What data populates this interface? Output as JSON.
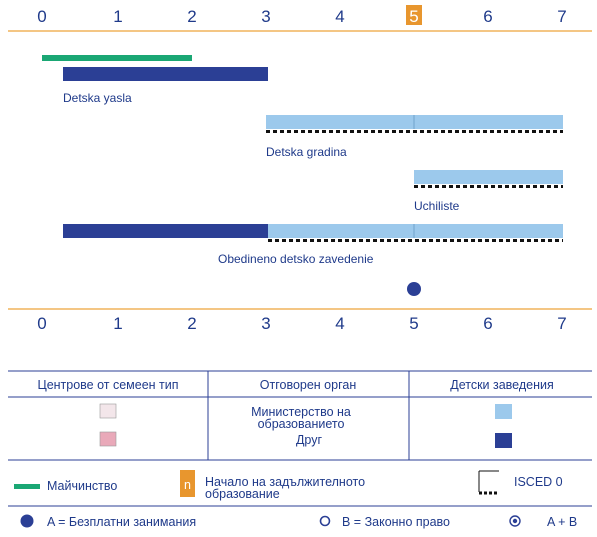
{
  "axis": {
    "ticks": [
      "0",
      "1",
      "2",
      "3",
      "4",
      "5",
      "6",
      "7"
    ],
    "compulsory_start": "5"
  },
  "colors": {
    "navy": "#2b3f95",
    "light_blue": "#9cc9ec",
    "green": "#1aa774",
    "orange": "#e8962e",
    "axis_line": "#f0b35c",
    "text": "#1f3a8a",
    "pink_light": "#f3e6ea",
    "pink": "#e9a9b9"
  },
  "chart_data": {
    "type": "bar",
    "x_unit": "age",
    "xlim": [
      0,
      7
    ],
    "programmes": [
      {
        "name": "Maternity",
        "from": 0,
        "to": 2,
        "color": "green"
      },
      {
        "name": "Detska yasla",
        "segments": [
          {
            "from": 0.3,
            "to": 3,
            "type": "navy"
          }
        ]
      },
      {
        "name": "Detska gradina",
        "segments": [
          {
            "from": 3,
            "to": 7,
            "type": "light_blue",
            "isced0": true
          }
        ]
      },
      {
        "name": "Uchiliste",
        "segments": [
          {
            "from": 5,
            "to": 7,
            "type": "light_blue",
            "isced0": true
          }
        ]
      },
      {
        "name": "Obedineno detsko zavedenie",
        "segments": [
          {
            "from": 0.3,
            "to": 3,
            "type": "navy"
          },
          {
            "from": 3,
            "to": 7,
            "type": "light_blue",
            "isced0": true
          }
        ]
      }
    ],
    "entitlement": {
      "age": 5,
      "type": "A"
    }
  },
  "rows": {
    "maternity_bar": "Maternity",
    "yasla": "Detska yasla",
    "gradina": "Detska gradina",
    "uchiliste": "Uchiliste",
    "obedineno": "Obedineno detsko zavedenie"
  },
  "legend_table": {
    "headers": [
      "Центрове от семеен тип",
      "Отговорен орган",
      "Детски заведения"
    ],
    "rows": [
      {
        "line1": "Министерство на",
        "line2": "образованието"
      },
      {
        "line1": "Друг"
      }
    ]
  },
  "legend": {
    "maternity": "Майчинство",
    "compulsory_icon": "n",
    "compulsory_line1": "Начало на задължителното",
    "compulsory_line2": "образование",
    "isced": "ISCED 0",
    "a_label": "A = Безплатни занимания",
    "b_label": "B = Законно право",
    "ab_label": "A + B"
  }
}
